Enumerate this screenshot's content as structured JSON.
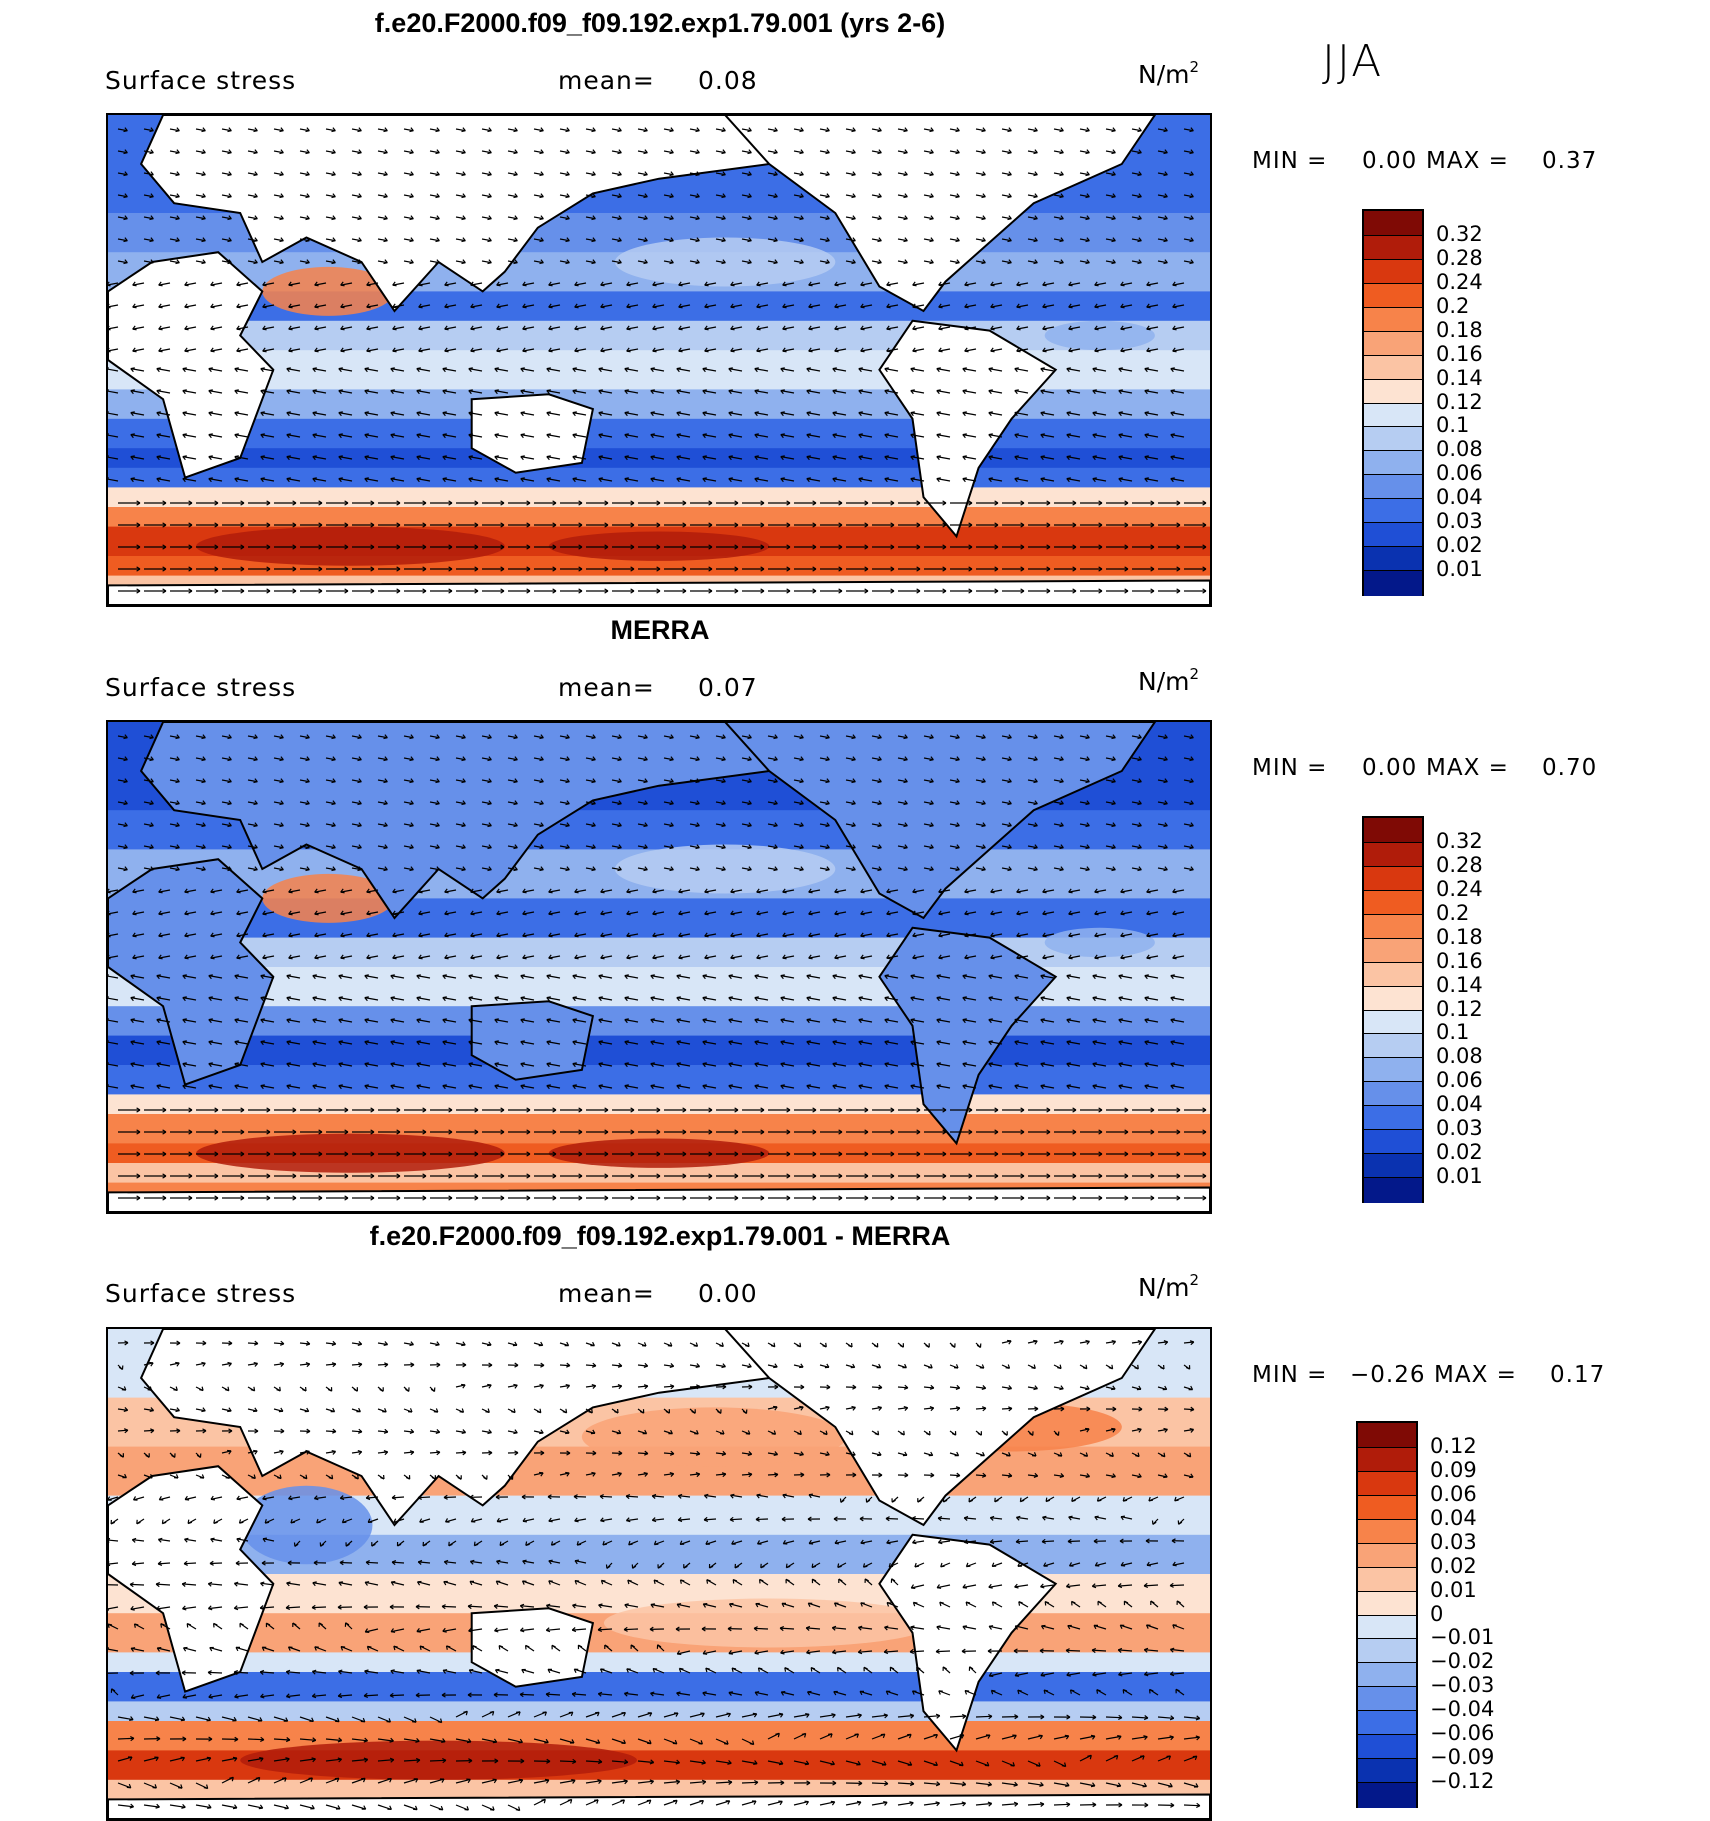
{
  "season": "JJA",
  "panels": [
    {
      "title": "f.e20.F2000.f09_f09.192.exp1.79.001 (yrs 2-6)",
      "variable": "Surface stress",
      "mean_label": "mean=",
      "mean_value": "0.08",
      "unit": "N/m",
      "unit_power": "2",
      "min_label": "MIN =",
      "min_value": "0.00",
      "max_label": "MAX =",
      "max_value": "0.37",
      "colorbar_ticks": [
        "0.32",
        "0.28",
        "0.24",
        "0.2",
        "0.18",
        "0.16",
        "0.14",
        "0.12",
        "0.1",
        "0.08",
        "0.06",
        "0.04",
        "0.03",
        "0.02",
        "0.01"
      ],
      "colorbar_colors": [
        "#7f0a05",
        "#b01c0a",
        "#d9380f",
        "#ef5c21",
        "#f7834a",
        "#f9a377",
        "#fbc4a4",
        "#fde3d2",
        "#d8e6f7",
        "#b6cdf2",
        "#8fb1ee",
        "#6690ea",
        "#3c6ee6",
        "#1f4fd6",
        "#0a32b0",
        "#03188a"
      ]
    },
    {
      "title": "MERRA",
      "variable": "Surface stress",
      "mean_label": "mean=",
      "mean_value": "0.07",
      "unit": "N/m",
      "unit_power": "2",
      "min_label": "MIN =",
      "min_value": "0.00",
      "max_label": "MAX =",
      "max_value": "0.70",
      "colorbar_ticks": [
        "0.32",
        "0.28",
        "0.24",
        "0.2",
        "0.18",
        "0.16",
        "0.14",
        "0.12",
        "0.1",
        "0.08",
        "0.06",
        "0.04",
        "0.03",
        "0.02",
        "0.01"
      ],
      "colorbar_colors": [
        "#7f0a05",
        "#b01c0a",
        "#d9380f",
        "#ef5c21",
        "#f7834a",
        "#f9a377",
        "#fbc4a4",
        "#fde3d2",
        "#d8e6f7",
        "#b6cdf2",
        "#8fb1ee",
        "#6690ea",
        "#3c6ee6",
        "#1f4fd6",
        "#0a32b0",
        "#03188a"
      ]
    },
    {
      "title": "f.e20.F2000.f09_f09.192.exp1.79.001 - MERRA",
      "variable": "Surface stress",
      "mean_label": "mean=",
      "mean_value": "0.00",
      "unit": "N/m",
      "unit_power": "2",
      "min_label": "MIN =",
      "min_value": "−0.26",
      "max_label": "MAX =",
      "max_value": "0.17",
      "colorbar_ticks": [
        "0.12",
        "0.09",
        "0.06",
        "0.04",
        "0.03",
        "0.02",
        "0.01",
        "0",
        "−0.01",
        "−0.02",
        "−0.03",
        "−0.04",
        "−0.06",
        "−0.09",
        "−0.12"
      ],
      "colorbar_colors": [
        "#7f0a05",
        "#b01c0a",
        "#d9380f",
        "#ef5c21",
        "#f7834a",
        "#f9a377",
        "#fbc4a4",
        "#fde3d2",
        "#d8e6f7",
        "#b6cdf2",
        "#8fb1ee",
        "#6690ea",
        "#3c6ee6",
        "#1f4fd6",
        "#0a32b0",
        "#03188a"
      ]
    }
  ],
  "chart_data": [
    {
      "type": "heatmap",
      "title": "f.e20.F2000.f09_f09.192.exp1.79.001 (yrs 2-6)",
      "variable": "Surface stress",
      "unit": "N/m²",
      "mean": 0.08,
      "min": 0.0,
      "max": 0.37,
      "contour_levels": [
        0.01,
        0.02,
        0.03,
        0.04,
        0.06,
        0.08,
        0.1,
        0.12,
        0.14,
        0.16,
        0.18,
        0.2,
        0.24,
        0.28,
        0.32
      ],
      "vectors": true
    },
    {
      "type": "heatmap",
      "title": "MERRA",
      "variable": "Surface stress",
      "unit": "N/m²",
      "mean": 0.07,
      "min": 0.0,
      "max": 0.7,
      "contour_levels": [
        0.01,
        0.02,
        0.03,
        0.04,
        0.06,
        0.08,
        0.1,
        0.12,
        0.14,
        0.16,
        0.18,
        0.2,
        0.24,
        0.28,
        0.32
      ],
      "vectors": true
    },
    {
      "type": "heatmap",
      "title": "f.e20.F2000.f09_f09.192.exp1.79.001 - MERRA",
      "variable": "Surface stress",
      "unit": "N/m²",
      "mean": 0.0,
      "min": -0.26,
      "max": 0.17,
      "contour_levels": [
        -0.12,
        -0.09,
        -0.06,
        -0.04,
        -0.03,
        -0.02,
        -0.01,
        0,
        0.01,
        0.02,
        0.03,
        0.04,
        0.06,
        0.09,
        0.12
      ],
      "vectors": true
    }
  ]
}
